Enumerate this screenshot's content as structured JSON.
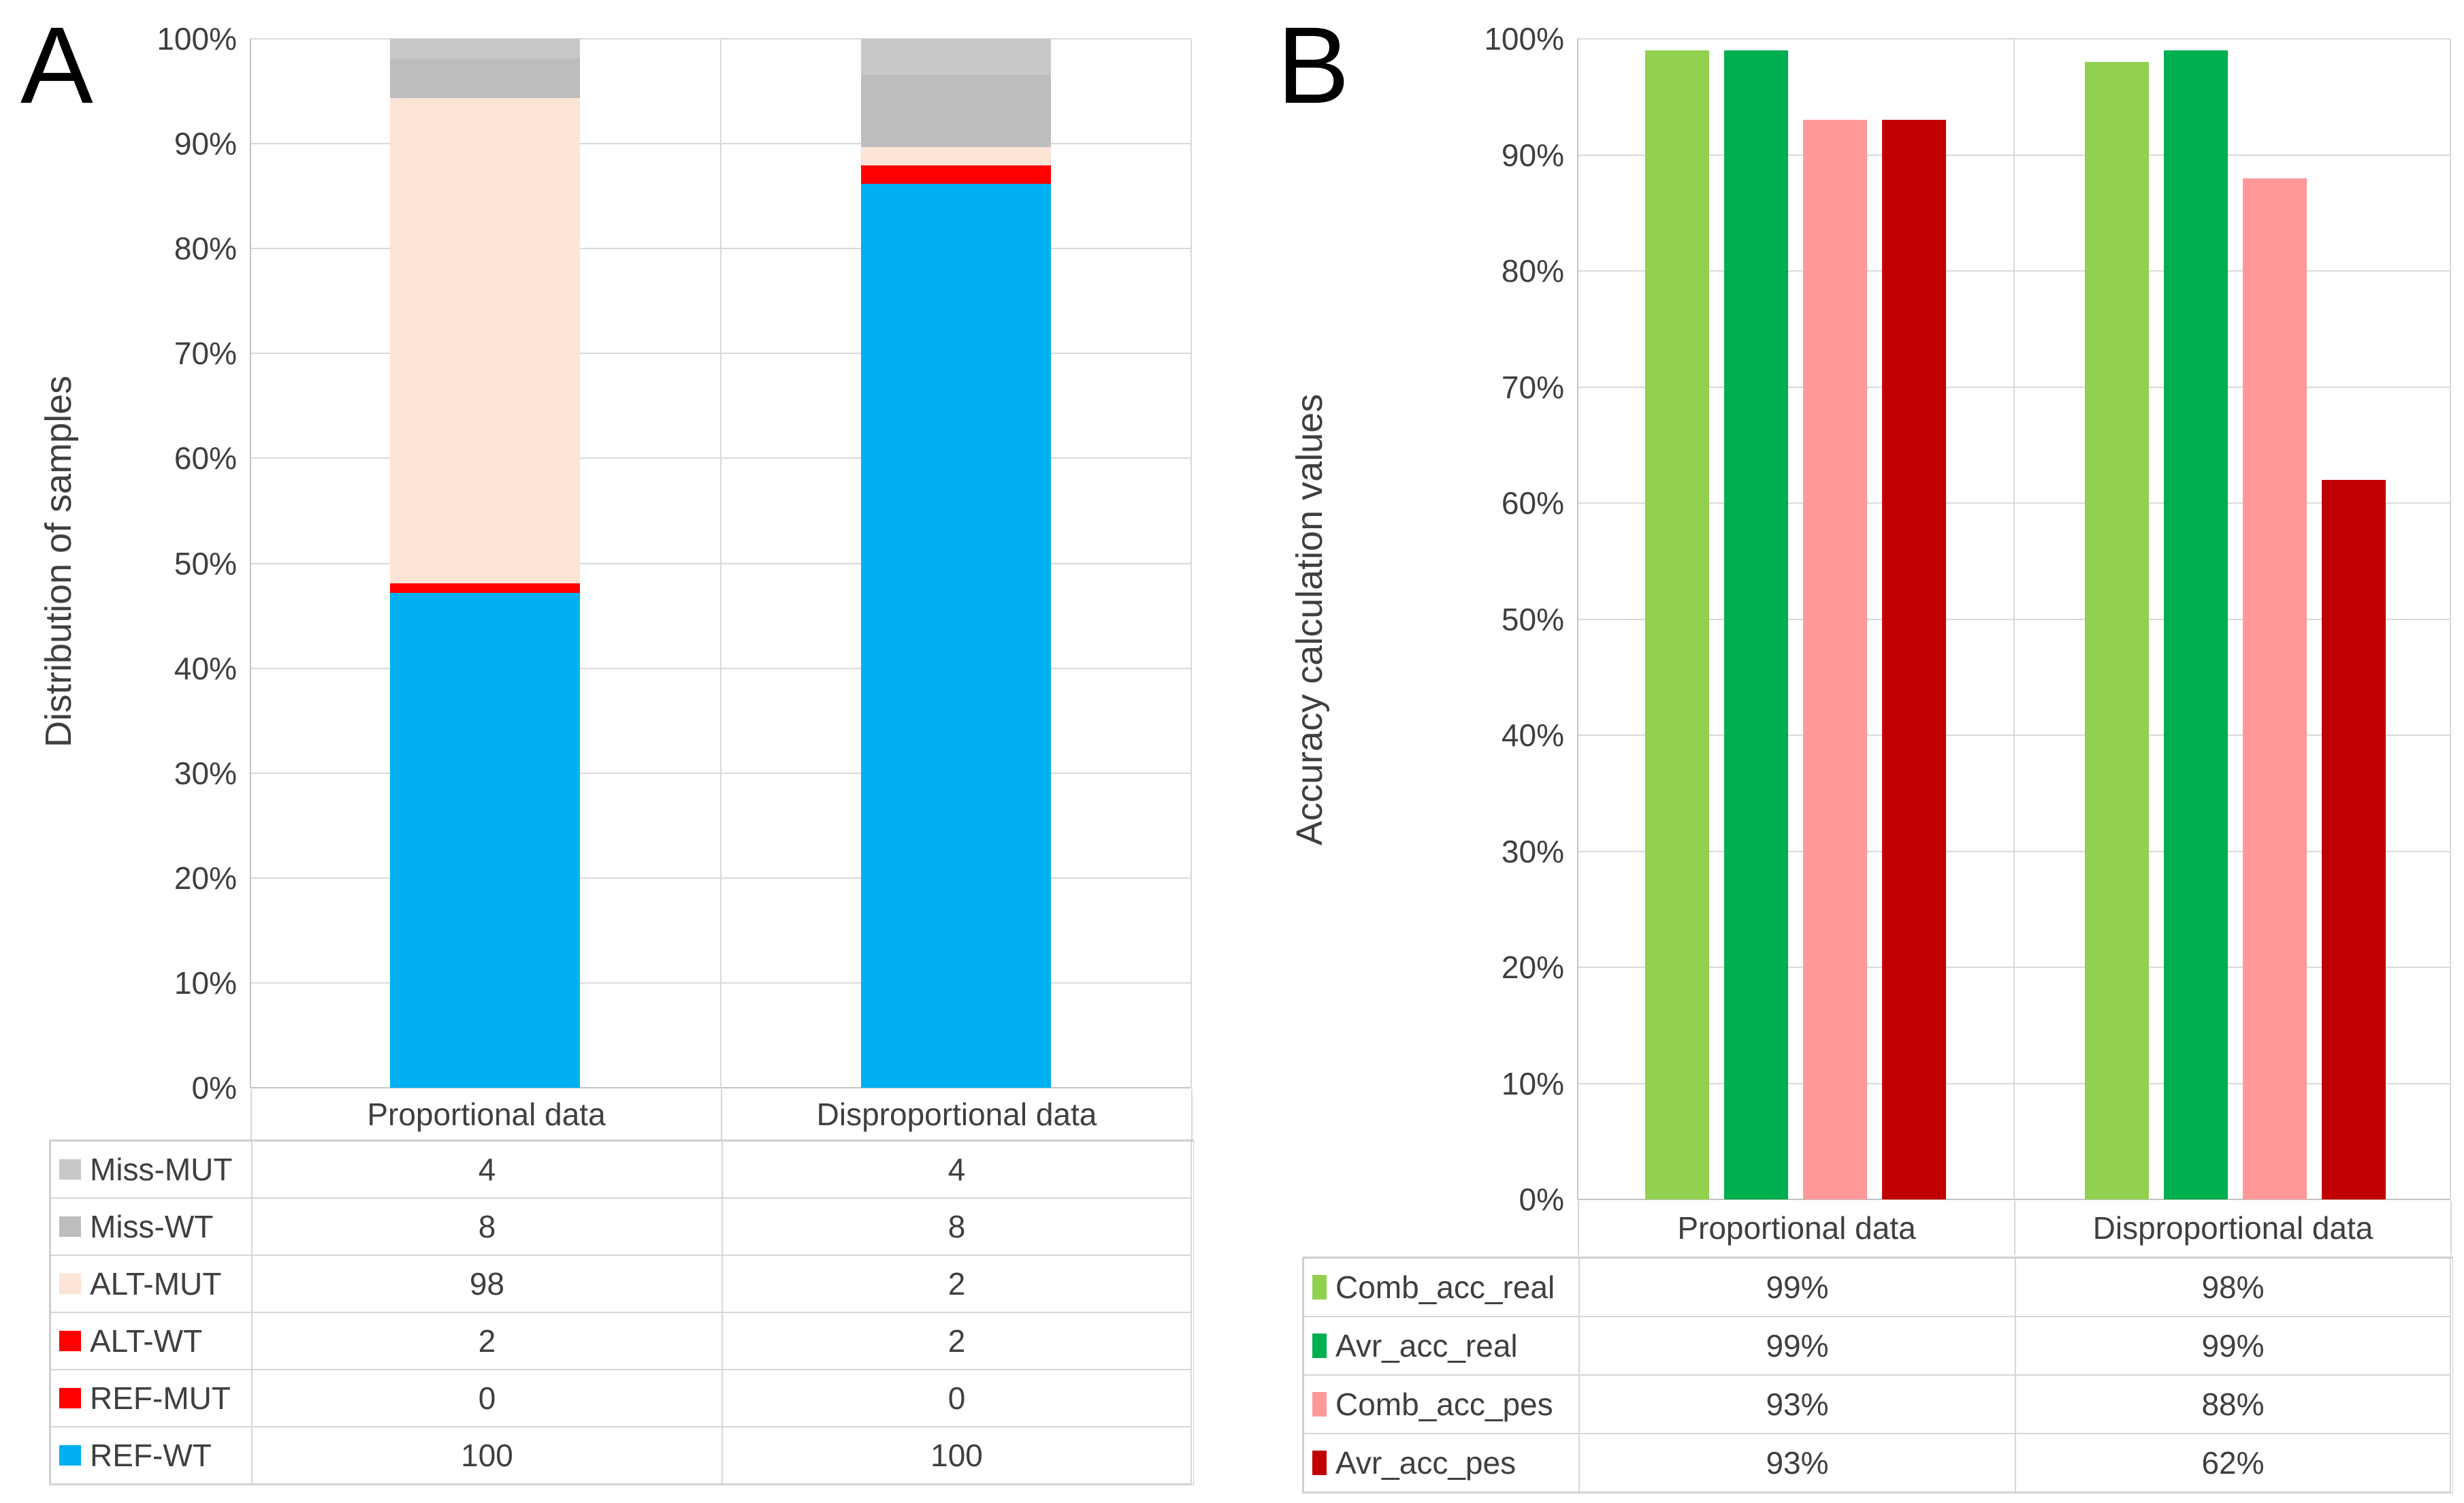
{
  "figure": {
    "background": "#ffffff",
    "text_color": "#3f3f3f",
    "gridline_color": "#D9D9D9"
  },
  "chart_data": [
    {
      "panel_label": "A",
      "type": "bar",
      "subtype": "stacked-100pct-column",
      "ylabel": "Distribution of samples",
      "xlabel": "",
      "title": "",
      "ylim": [
        0,
        100
      ],
      "grid": true,
      "legend_position": "data-table-left-column",
      "y_ticks": [
        "100%",
        "90%",
        "80%",
        "70%",
        "60%",
        "50%",
        "40%",
        "30%",
        "20%",
        "10%",
        "0%"
      ],
      "categories": [
        "Proportional data",
        "Disproportional data"
      ],
      "stack_order_bottom_to_top": [
        "REF-WT",
        "REF-MUT",
        "ALT-WT",
        "ALT-MUT",
        "Miss-WT",
        "Miss-MUT"
      ],
      "series": [
        {
          "name": "Miss-MUT",
          "color": "#C8C8C8",
          "values": [
            4,
            4
          ]
        },
        {
          "name": "Miss-WT",
          "color": "#BDBDBD",
          "values": [
            8,
            8
          ]
        },
        {
          "name": "ALT-MUT",
          "color": "#FCE4D6",
          "values": [
            98,
            2
          ]
        },
        {
          "name": "ALT-WT",
          "color": "#FF0000",
          "values": [
            2,
            2
          ]
        },
        {
          "name": "REF-MUT",
          "color": "#FF0000",
          "values": [
            0,
            0
          ]
        },
        {
          "name": "REF-WT",
          "color": "#00B0F0",
          "values": [
            100,
            100
          ]
        }
      ]
    },
    {
      "panel_label": "B",
      "type": "bar",
      "subtype": "grouped-column",
      "ylabel": "Accuracy calculation values",
      "xlabel": "",
      "title": "",
      "ylim": [
        0,
        100
      ],
      "grid": true,
      "legend_position": "data-table-left-column",
      "y_ticks": [
        "100%",
        "90%",
        "80%",
        "70%",
        "60%",
        "50%",
        "40%",
        "30%",
        "20%",
        "10%",
        "0%"
      ],
      "categories": [
        "Proportional data",
        "Disproportional data"
      ],
      "series": [
        {
          "name": "Comb_acc_real",
          "color": "#92D050",
          "values": [
            99,
            98
          ],
          "display": [
            "99%",
            "98%"
          ]
        },
        {
          "name": "Avr_acc_real",
          "color": "#00B050",
          "values": [
            99,
            99
          ],
          "display": [
            "99%",
            "99%"
          ]
        },
        {
          "name": "Comb_acc_pes",
          "color": "#FF9999",
          "values": [
            93,
            88
          ],
          "display": [
            "93%",
            "88%"
          ]
        },
        {
          "name": "Avr_acc_pes",
          "color": "#C00000",
          "values": [
            93,
            62
          ],
          "display": [
            "93%",
            "62%"
          ]
        }
      ]
    }
  ]
}
